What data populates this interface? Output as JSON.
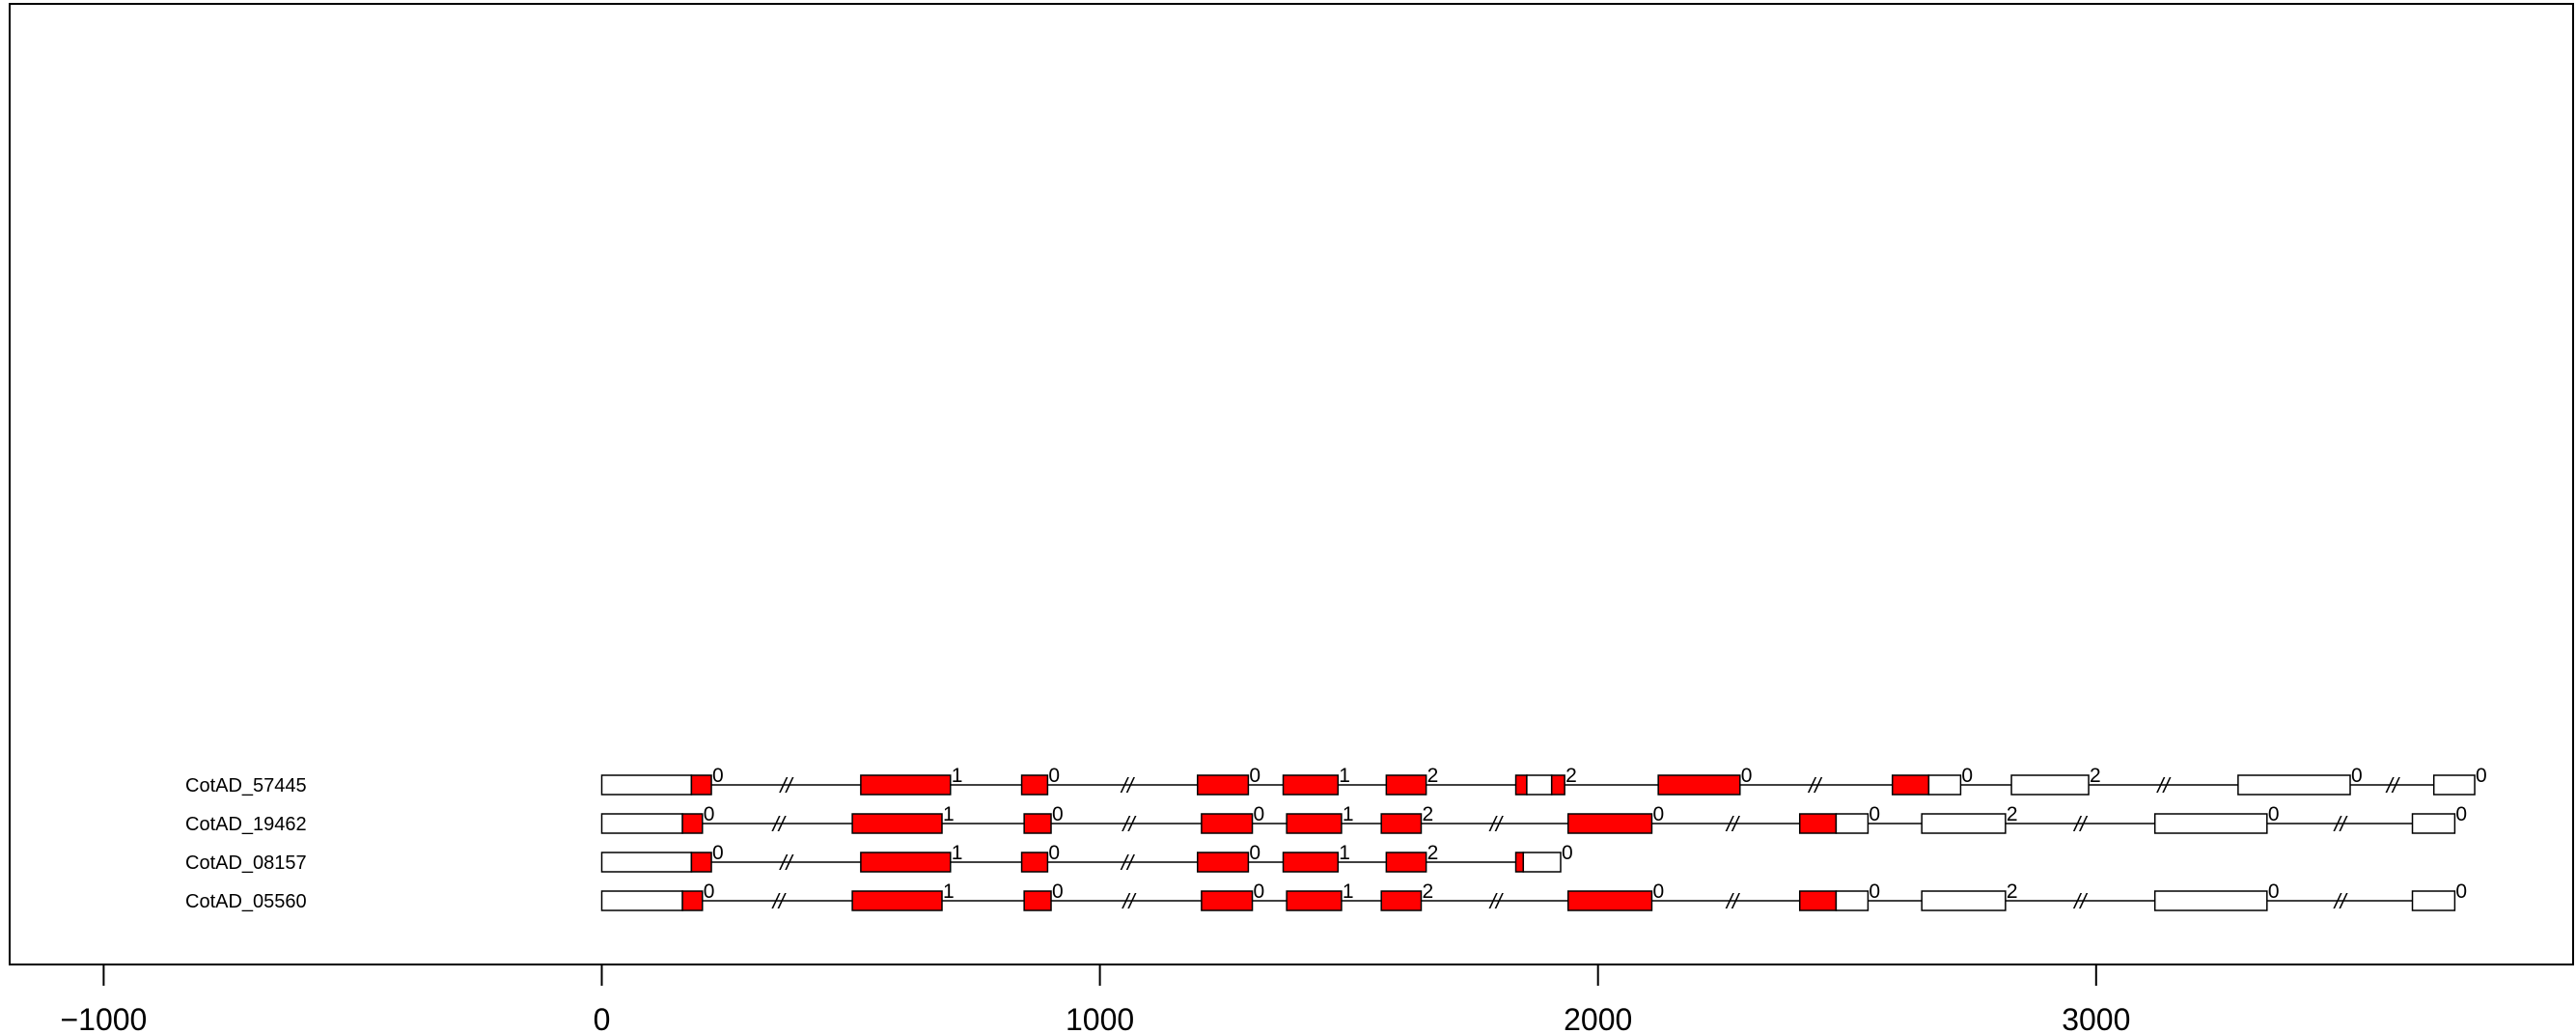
{
  "chart_data": {
    "type": "gene_structure",
    "title": "",
    "xlabel": "",
    "ylabel": "",
    "xlim": [
      -1000,
      3800
    ],
    "x_ticks": [
      {
        "value": -1000,
        "label": "−1000"
      },
      {
        "value": 0,
        "label": "0"
      },
      {
        "value": 1000,
        "label": "1000"
      },
      {
        "value": 2000,
        "label": "2000"
      },
      {
        "value": 3000,
        "label": "3000"
      }
    ],
    "colors": {
      "cds": "#ff0000",
      "utr": "#ffffff",
      "outline": "#000000"
    },
    "intron_break_glyph": "//",
    "genes": [
      {
        "name": "CotAD_57445",
        "span": [
          0,
          3760
        ],
        "segments": [
          {
            "start": 0,
            "end": 180,
            "type": "utr"
          },
          {
            "start": 180,
            "end": 220,
            "type": "cds"
          },
          {
            "start": 520,
            "end": 700,
            "type": "cds"
          },
          {
            "start": 843,
            "end": 895,
            "type": "cds"
          },
          {
            "start": 1196,
            "end": 1298,
            "type": "cds"
          },
          {
            "start": 1368,
            "end": 1478,
            "type": "cds"
          },
          {
            "start": 1575,
            "end": 1655,
            "type": "cds"
          },
          {
            "start": 1835,
            "end": 1857,
            "type": "cds"
          },
          {
            "start": 1857,
            "end": 1907,
            "type": "utr"
          },
          {
            "start": 1907,
            "end": 1933,
            "type": "cds"
          },
          {
            "start": 2121,
            "end": 2285,
            "type": "cds"
          },
          {
            "start": 2591,
            "end": 2664,
            "type": "cds"
          },
          {
            "start": 2664,
            "end": 2728,
            "type": "utr"
          },
          {
            "start": 2830,
            "end": 2985,
            "type": "utr"
          },
          {
            "start": 3285,
            "end": 3510,
            "type": "utr"
          },
          {
            "start": 3678,
            "end": 3760,
            "type": "utr"
          }
        ],
        "phases": [
          {
            "pos": 220,
            "label": "0"
          },
          {
            "pos": 700,
            "label": "1"
          },
          {
            "pos": 895,
            "label": "0"
          },
          {
            "pos": 1298,
            "label": "0"
          },
          {
            "pos": 1478,
            "label": "1"
          },
          {
            "pos": 1655,
            "label": "2"
          },
          {
            "pos": 1933,
            "label": "2"
          },
          {
            "pos": 2285,
            "label": "0"
          },
          {
            "pos": 2728,
            "label": "0"
          },
          {
            "pos": 2985,
            "label": "2"
          },
          {
            "pos": 3510,
            "label": "0"
          },
          {
            "pos": 3760,
            "label": "0"
          }
        ],
        "breaks": [
          370,
          1055,
          2435,
          3135,
          3595
        ]
      },
      {
        "name": "CotAD_19462",
        "span": [
          0,
          3720
        ],
        "segments": [
          {
            "start": 0,
            "end": 162,
            "type": "utr"
          },
          {
            "start": 162,
            "end": 202,
            "type": "cds"
          },
          {
            "start": 503,
            "end": 683,
            "type": "cds"
          },
          {
            "start": 848,
            "end": 902,
            "type": "cds"
          },
          {
            "start": 1204,
            "end": 1306,
            "type": "cds"
          },
          {
            "start": 1375,
            "end": 1485,
            "type": "cds"
          },
          {
            "start": 1565,
            "end": 1645,
            "type": "cds"
          },
          {
            "start": 1940,
            "end": 2108,
            "type": "cds"
          },
          {
            "start": 2405,
            "end": 2478,
            "type": "cds"
          },
          {
            "start": 2478,
            "end": 2542,
            "type": "utr"
          },
          {
            "start": 2650,
            "end": 2818,
            "type": "utr"
          },
          {
            "start": 3118,
            "end": 3343,
            "type": "utr"
          },
          {
            "start": 3635,
            "end": 3720,
            "type": "utr"
          }
        ],
        "phases": [
          {
            "pos": 202,
            "label": "0"
          },
          {
            "pos": 683,
            "label": "1"
          },
          {
            "pos": 902,
            "label": "0"
          },
          {
            "pos": 1306,
            "label": "0"
          },
          {
            "pos": 1485,
            "label": "1"
          },
          {
            "pos": 1645,
            "label": "2"
          },
          {
            "pos": 2108,
            "label": "0"
          },
          {
            "pos": 2542,
            "label": "0"
          },
          {
            "pos": 2818,
            "label": "2"
          },
          {
            "pos": 3343,
            "label": "0"
          },
          {
            "pos": 3720,
            "label": "0"
          }
        ],
        "breaks": [
          355,
          1058,
          1795,
          2270,
          2968,
          3490
        ]
      },
      {
        "name": "CotAD_08157",
        "span": [
          0,
          1925
        ],
        "segments": [
          {
            "start": 0,
            "end": 180,
            "type": "utr"
          },
          {
            "start": 180,
            "end": 220,
            "type": "cds"
          },
          {
            "start": 520,
            "end": 700,
            "type": "cds"
          },
          {
            "start": 843,
            "end": 895,
            "type": "cds"
          },
          {
            "start": 1196,
            "end": 1298,
            "type": "cds"
          },
          {
            "start": 1368,
            "end": 1478,
            "type": "cds"
          },
          {
            "start": 1575,
            "end": 1655,
            "type": "cds"
          },
          {
            "start": 1835,
            "end": 1850,
            "type": "cds"
          },
          {
            "start": 1850,
            "end": 1925,
            "type": "utr"
          }
        ],
        "phases": [
          {
            "pos": 220,
            "label": "0"
          },
          {
            "pos": 700,
            "label": "1"
          },
          {
            "pos": 895,
            "label": "0"
          },
          {
            "pos": 1298,
            "label": "0"
          },
          {
            "pos": 1478,
            "label": "1"
          },
          {
            "pos": 1655,
            "label": "2"
          },
          {
            "pos": 1925,
            "label": "0"
          }
        ],
        "breaks": [
          370,
          1055
        ]
      },
      {
        "name": "CotAD_05560",
        "span": [
          0,
          3720
        ],
        "segments": [
          {
            "start": 0,
            "end": 162,
            "type": "utr"
          },
          {
            "start": 162,
            "end": 202,
            "type": "cds"
          },
          {
            "start": 503,
            "end": 683,
            "type": "cds"
          },
          {
            "start": 848,
            "end": 902,
            "type": "cds"
          },
          {
            "start": 1204,
            "end": 1306,
            "type": "cds"
          },
          {
            "start": 1375,
            "end": 1485,
            "type": "cds"
          },
          {
            "start": 1565,
            "end": 1645,
            "type": "cds"
          },
          {
            "start": 1940,
            "end": 2108,
            "type": "cds"
          },
          {
            "start": 2405,
            "end": 2478,
            "type": "cds"
          },
          {
            "start": 2478,
            "end": 2542,
            "type": "utr"
          },
          {
            "start": 2650,
            "end": 2818,
            "type": "utr"
          },
          {
            "start": 3118,
            "end": 3343,
            "type": "utr"
          },
          {
            "start": 3635,
            "end": 3720,
            "type": "utr"
          }
        ],
        "phases": [
          {
            "pos": 202,
            "label": "0"
          },
          {
            "pos": 683,
            "label": "1"
          },
          {
            "pos": 902,
            "label": "0"
          },
          {
            "pos": 1306,
            "label": "0"
          },
          {
            "pos": 1485,
            "label": "1"
          },
          {
            "pos": 1645,
            "label": "2"
          },
          {
            "pos": 2108,
            "label": "0"
          },
          {
            "pos": 2542,
            "label": "0"
          },
          {
            "pos": 2818,
            "label": "2"
          },
          {
            "pos": 3343,
            "label": "0"
          },
          {
            "pos": 3720,
            "label": "0"
          }
        ],
        "breaks": [
          355,
          1058,
          1795,
          2270,
          2968,
          3490
        ]
      }
    ]
  }
}
